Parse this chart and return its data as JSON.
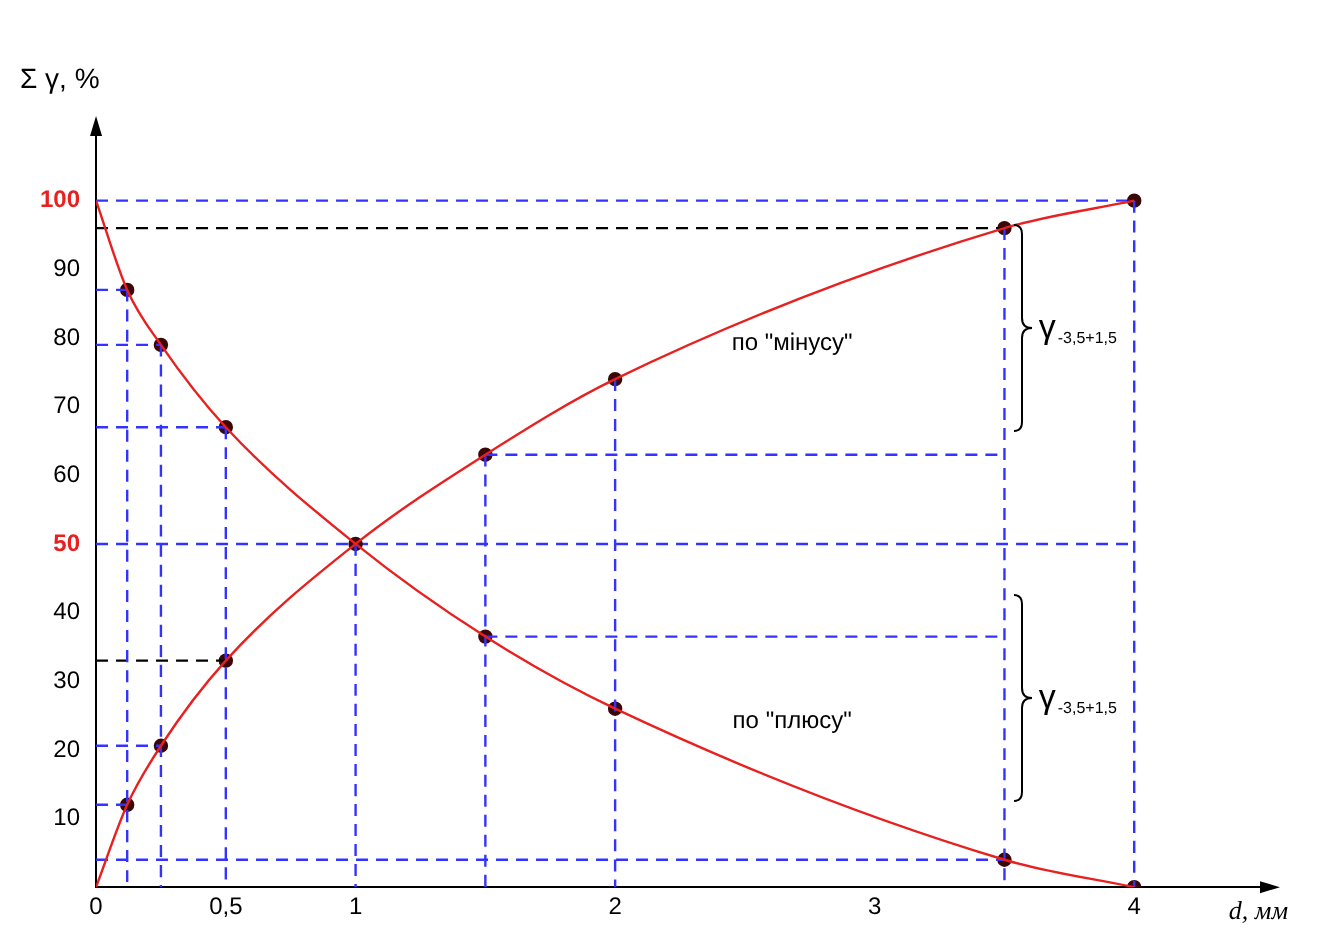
{
  "chart_data": {
    "type": "line",
    "xlabel": "d, мм",
    "ylabel": "Σ γ, %",
    "xlim": [
      0,
      4.5
    ],
    "xticks": [
      0,
      {
        "value": 0.5,
        "label": "0,5"
      },
      1,
      2,
      3,
      4
    ],
    "ylim": [
      0,
      110
    ],
    "yticks": [
      10,
      20,
      30,
      40,
      50,
      60,
      70,
      80,
      90,
      100
    ],
    "legend": false,
    "line_style": "solid",
    "series": [
      {
        "type": "line",
        "color": "#e82020",
        "marker": "none",
        "x": [
          0,
          0.12,
          0.25,
          0.5,
          1,
          1.5,
          2,
          3.5,
          4
        ],
        "values": [
          0,
          12,
          20.6,
          33,
          50,
          63,
          74,
          96,
          100
        ]
      },
      {
        "type": "line",
        "color": "#e82020",
        "marker": "none",
        "x": [
          0,
          0.12,
          0.25,
          0.5,
          1,
          1.5,
          2,
          3.5,
          4
        ],
        "values": [
          100,
          87,
          79,
          67,
          50,
          36.5,
          26,
          4,
          0
        ]
      },
      {
        "type": "line",
        "color": "#3333ff",
        "marker": "none",
        "line_style": "dashed",
        "x": [
          0.12,
          0.12
        ],
        "values": [
          87,
          0
        ]
      },
      {
        "type": "line",
        "color": "#3333ff",
        "marker": "none",
        "line_style": "dashed",
        "x": [
          0.25,
          0.25
        ],
        "values": [
          79,
          0
        ]
      },
      {
        "type": "line",
        "color": "#3333ff",
        "marker": "none",
        "line_style": "dashed",
        "x": [
          0.5,
          0.5
        ],
        "values": [
          67,
          0
        ]
      },
      {
        "type": "line",
        "color": "#3333ff",
        "marker": "none",
        "line_style": "dashed",
        "x": [
          1,
          1
        ],
        "values": [
          50,
          0
        ]
      },
      {
        "type": "line",
        "color": "#3333ff",
        "marker": "none",
        "line_style": "dashed",
        "x": [
          1.5,
          1.5
        ],
        "values": [
          63,
          0
        ]
      },
      {
        "type": "line",
        "color": "#3333ff",
        "marker": "none",
        "line_style": "dashed",
        "x": [
          2,
          2
        ],
        "values": [
          74,
          0
        ]
      },
      {
        "type": "line",
        "color": "#3333ff",
        "marker": "none",
        "line_style": "dashed",
        "x": [
          3.5,
          3.5
        ],
        "values": [
          96,
          0
        ]
      },
      {
        "type": "line",
        "color": "#3333ff",
        "marker": "none",
        "line_style": "dashed",
        "x": [
          4,
          4
        ],
        "values": [
          100,
          0
        ]
      },
      {
        "type": "line",
        "color": "#3333ff",
        "marker": "none",
        "line_style": "dashed",
        "x": [
          0,
          0.12
        ],
        "values": [
          87,
          87
        ]
      },
      {
        "type": "line",
        "color": "#3333ff",
        "marker": "none",
        "line_style": "dashed",
        "x": [
          0,
          0.25
        ],
        "values": [
          79,
          79
        ]
      },
      {
        "type": "line",
        "color": "#3333ff",
        "marker": "none",
        "line_style": "dashed",
        "x": [
          0,
          0.5
        ],
        "values": [
          67,
          67
        ]
      },
      {
        "type": "line",
        "color": "#3333ff",
        "marker": "none",
        "line_style": "dashed",
        "x": [
          0,
          0.25
        ],
        "values": [
          20.6,
          20.6
        ]
      },
      {
        "type": "line",
        "color": "#3333ff",
        "marker": "none",
        "line_style": "dashed",
        "x": [
          0,
          0.12
        ],
        "values": [
          12,
          12
        ]
      },
      {
        "type": "line",
        "color": "#3333ff",
        "marker": "none",
        "line_style": "dashed",
        "x": [
          0,
          3.5
        ],
        "values": [
          4,
          4
        ]
      },
      {
        "type": "line",
        "color": "#3333ff",
        "marker": "none",
        "line_style": "dashed",
        "x": [
          1.5,
          3.5
        ],
        "values": [
          63,
          63
        ]
      },
      {
        "type": "line",
        "color": "#3333ff",
        "marker": "none",
        "line_style": "dashed",
        "x": [
          1.5,
          3.5
        ],
        "values": [
          36.5,
          36.5
        ]
      },
      {
        "type": "line",
        "color": "#000000",
        "marker": "none",
        "line_style": "dashed",
        "x": [
          0,
          3.5
        ],
        "values": [
          96,
          96
        ]
      },
      {
        "type": "line",
        "color": "#000000",
        "marker": "none",
        "line_style": "dashed",
        "x": [
          0,
          0.5
        ],
        "values": [
          33,
          33
        ]
      },
      {
        "type": "scatter",
        "color": "#3a0808",
        "marker": "circle",
        "x": [
          0.12,
          0.25,
          0.5,
          1,
          1.5,
          2,
          3.5,
          4
        ],
        "values": [
          12,
          20.6,
          33,
          50,
          63,
          74,
          96,
          100
        ]
      },
      {
        "type": "scatter",
        "color": "#3a0808",
        "marker": "circle",
        "x": [
          0.12,
          0.25,
          0.5,
          1.5,
          2,
          3.5,
          4
        ],
        "values": [
          87,
          79,
          67,
          36.5,
          26,
          4,
          0
        ]
      }
    ],
    "ref_lines": [
      {
        "axis": "y",
        "value": 50,
        "color": "#3333ff",
        "line_style": "dashed"
      },
      {
        "axis": "y",
        "value": 100,
        "color": "#3333ff",
        "line_style": "dashed"
      }
    ],
    "annotations": [
      "по \"мінусу\"",
      "по \"плюсу\"",
      "γ$_{-3,5+1,5}$",
      "γ$_{-3,5+1,5}$"
    ]
  }
}
